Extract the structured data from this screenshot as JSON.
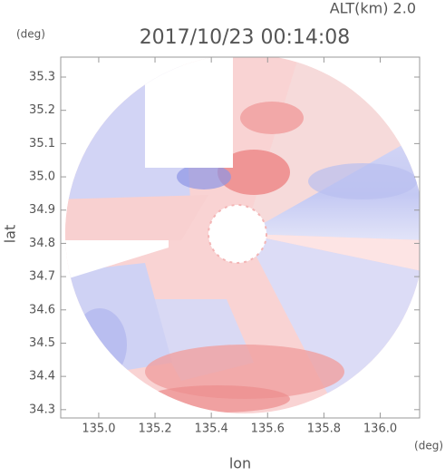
{
  "chart_data": {
    "type": "radar-map",
    "title": "2017/10/23 00:14:08",
    "subtitle": "ALT(km) 2.0",
    "y_unit": "(deg)",
    "x_unit": "(deg)",
    "xlabel": "lon",
    "ylabel": "lat",
    "xlim": [
      134.865,
      136.14
    ],
    "ylim": [
      34.275,
      35.36
    ],
    "xticks": [
      {
        "value": 135.0,
        "label": "135.0"
      },
      135.2,
      135.4,
      135.6,
      135.8,
      {
        "value": 136.0,
        "label": "136.0"
      }
    ],
    "yticks": [
      35.3,
      35.2,
      35.1,
      {
        "value": 35.0,
        "label": "35.0"
      },
      34.9,
      34.8,
      34.7,
      34.6,
      34.5,
      34.4,
      34.3
    ]
  }
}
